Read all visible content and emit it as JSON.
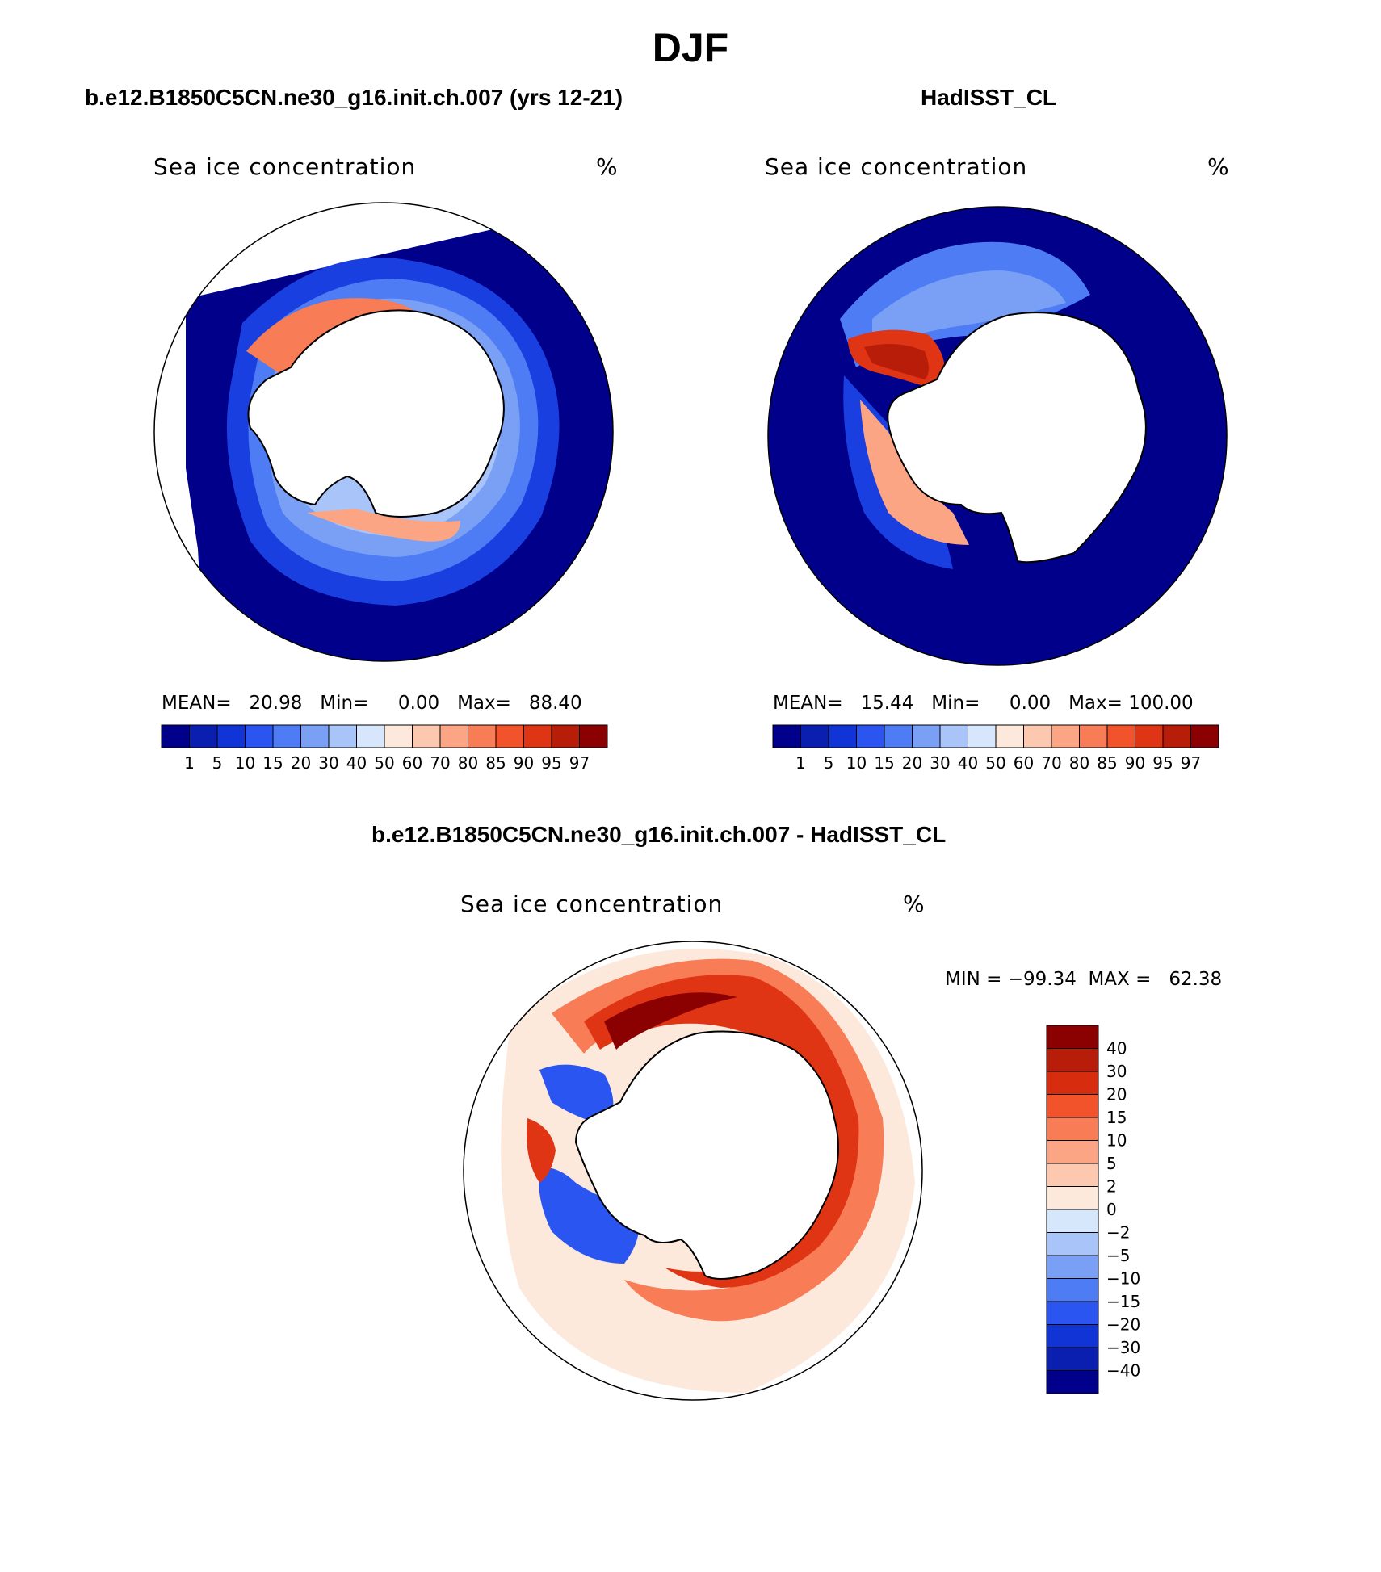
{
  "main_title": "DJF",
  "panels": [
    {
      "title": "b.e12.B1850C5CN.ne30_g16.init.ch.007 (yrs 12-21)",
      "variable": "Sea ice concentration",
      "units": "%",
      "stats": "MEAN=   20.98   Min=     0.00   Max=   88.40"
    },
    {
      "title": "HadISST_CL",
      "variable": "Sea ice concentration",
      "units": "%",
      "stats": "MEAN=   15.44   Min=     0.00   Max= 100.00"
    },
    {
      "title": "b.e12.B1850C5CN.ne30_g16.init.ch.007 - HadISST_CL",
      "variable": "Sea ice concentration",
      "units": "%",
      "stats": "MIN = −99.34  MAX =   62.38"
    }
  ],
  "colorbar_main": {
    "ticks": [
      "1",
      "5",
      "10",
      "15",
      "20",
      "30",
      "40",
      "50",
      "60",
      "70",
      "80",
      "85",
      "90",
      "95",
      "97"
    ],
    "colors": [
      "#00008b",
      "#0a1fb0",
      "#1034d6",
      "#2a55f0",
      "#4d7cf4",
      "#7aa0f5",
      "#a8c4f8",
      "#d6e6fb",
      "#fde9dc",
      "#fcc8b0",
      "#fba585",
      "#f87c55",
      "#f2532b",
      "#e03515",
      "#b81d09",
      "#8b0000"
    ]
  },
  "colorbar_diff": {
    "ticks": [
      "40",
      "30",
      "20",
      "15",
      "10",
      "5",
      "2",
      "0",
      "−2",
      "−5",
      "−10",
      "−15",
      "−20",
      "−30",
      "−40"
    ],
    "colors": [
      "#8b0000",
      "#b81d09",
      "#d82c0f",
      "#f2532b",
      "#f87c55",
      "#fba585",
      "#fcc8b0",
      "#fde9dc",
      "#d6e6fb",
      "#a8c4f8",
      "#7aa0f5",
      "#4d7cf4",
      "#2a55f0",
      "#1034d6",
      "#0a1fb0",
      "#00008b"
    ]
  }
}
